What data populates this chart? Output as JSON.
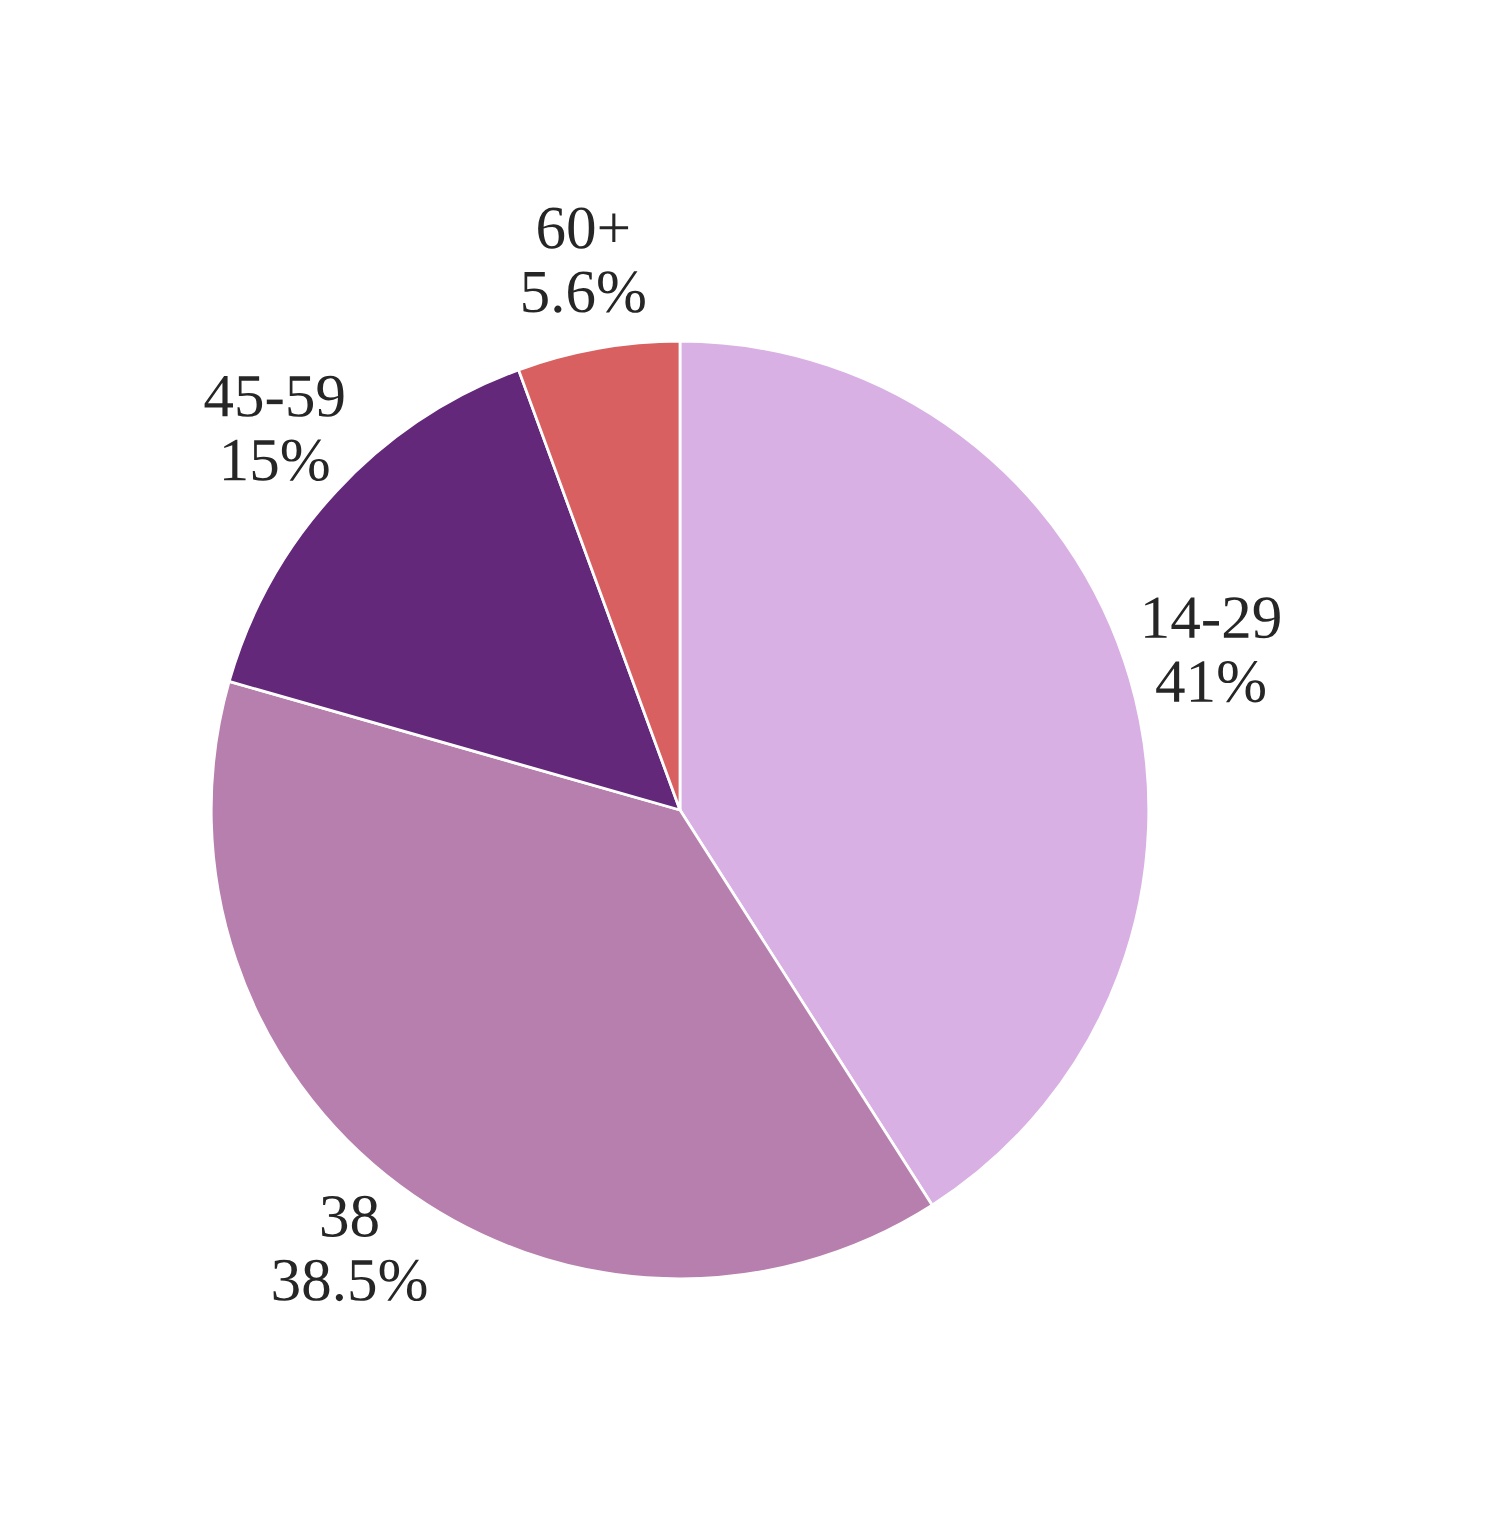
{
  "chart_data": {
    "type": "pie",
    "categories": [
      "14-29",
      "38",
      "45-59",
      "60+"
    ],
    "values": [
      41,
      38.5,
      15,
      5.6
    ],
    "value_labels": [
      "41%",
      "38.5%",
      "15%",
      "5.6%"
    ],
    "colors": [
      "#d9b0e3",
      "#b77fad",
      "#63287a",
      "#d96060"
    ],
    "legend": false
  }
}
